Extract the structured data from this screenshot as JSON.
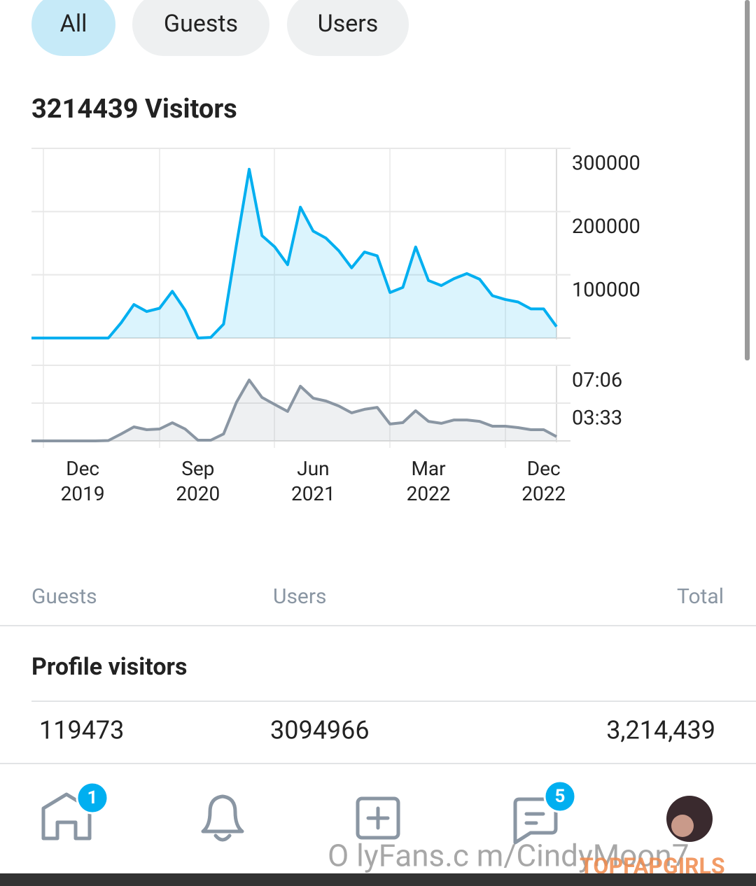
{
  "tabs": [
    "All",
    "Guests",
    "Users"
  ],
  "title": "3214439 Visitors",
  "chart_data": [
    {
      "type": "line",
      "color": "#00aff0",
      "x": [
        "2019-08",
        "2019-09",
        "2019-10",
        "2019-11",
        "2019-12",
        "2020-01",
        "2020-02",
        "2020-03",
        "2020-04",
        "2020-05",
        "2020-06",
        "2020-07",
        "2020-08",
        "2020-09",
        "2020-10",
        "2020-11",
        "2020-12",
        "2021-01",
        "2021-02",
        "2021-03",
        "2021-04",
        "2021-05",
        "2021-06",
        "2021-07",
        "2021-08",
        "2021-09",
        "2021-10",
        "2021-11",
        "2021-12",
        "2022-01",
        "2022-02",
        "2022-03",
        "2022-04",
        "2022-05",
        "2022-06",
        "2022-07",
        "2022-08",
        "2022-09",
        "2022-10",
        "2022-11",
        "2022-12",
        "2023-01"
      ],
      "values": [
        0,
        0,
        0,
        0,
        0,
        0,
        0,
        24000,
        53000,
        42000,
        47000,
        74000,
        44000,
        0,
        1000,
        22000,
        147000,
        267000,
        162000,
        144000,
        116000,
        207000,
        169000,
        158000,
        138000,
        111000,
        136000,
        130000,
        72000,
        80000,
        144000,
        91000,
        83000,
        94000,
        102000,
        93000,
        67000,
        61000,
        57000,
        46000,
        46000,
        18000
      ],
      "ylim": [
        0,
        300000
      ],
      "yticks": [
        100000,
        200000,
        300000
      ],
      "grid": true
    },
    {
      "type": "line",
      "color": "#8a96a3",
      "x": [
        "2019-08",
        "2019-09",
        "2019-10",
        "2019-11",
        "2019-12",
        "2020-01",
        "2020-02",
        "2020-03",
        "2020-04",
        "2020-05",
        "2020-06",
        "2020-07",
        "2020-08",
        "2020-09",
        "2020-10",
        "2020-11",
        "2020-12",
        "2021-01",
        "2021-02",
        "2021-03",
        "2021-04",
        "2021-05",
        "2021-06",
        "2021-07",
        "2021-08",
        "2021-09",
        "2021-10",
        "2021-11",
        "2021-12",
        "2022-01",
        "2022-02",
        "2022-03",
        "2022-04",
        "2022-05",
        "2022-06",
        "2022-07",
        "2022-08",
        "2022-09",
        "2022-10",
        "2022-11",
        "2022-12",
        "2023-01"
      ],
      "values": [
        0,
        0,
        0,
        0,
        0,
        0,
        2,
        39,
        79,
        63,
        67,
        102,
        67,
        4,
        4,
        39,
        217,
        343,
        245,
        205,
        166,
        308,
        241,
        225,
        197,
        158,
        178,
        189,
        95,
        103,
        170,
        110,
        99,
        118,
        118,
        110,
        83,
        83,
        75,
        63,
        63,
        24
      ],
      "ylim": [
        0,
        426
      ],
      "yticks": [
        {
          "value": 213,
          "label": "03:33"
        },
        {
          "value": 426,
          "label": "07:06"
        }
      ],
      "grid": true,
      "xticks": [
        {
          "value": "2019-12",
          "label": "Dec 2019"
        },
        {
          "value": "2020-09",
          "label": "Sep 2020"
        },
        {
          "value": "2021-06",
          "label": "Jun 2021"
        },
        {
          "value": "2022-03",
          "label": "Mar 2022"
        },
        {
          "value": "2022-12",
          "label": "Dec 2022"
        }
      ]
    }
  ],
  "table": {
    "headers": [
      "Guests",
      "Users",
      "Total"
    ],
    "section": "Profile visitors",
    "row": [
      119473,
      3094966,
      "3,214,439"
    ]
  },
  "nav": {
    "badges": [
      1,
      5
    ]
  },
  "watermark": [
    "O lyFans.c m/CindyMoon7",
    "TOPFAPGIRLS"
  ]
}
